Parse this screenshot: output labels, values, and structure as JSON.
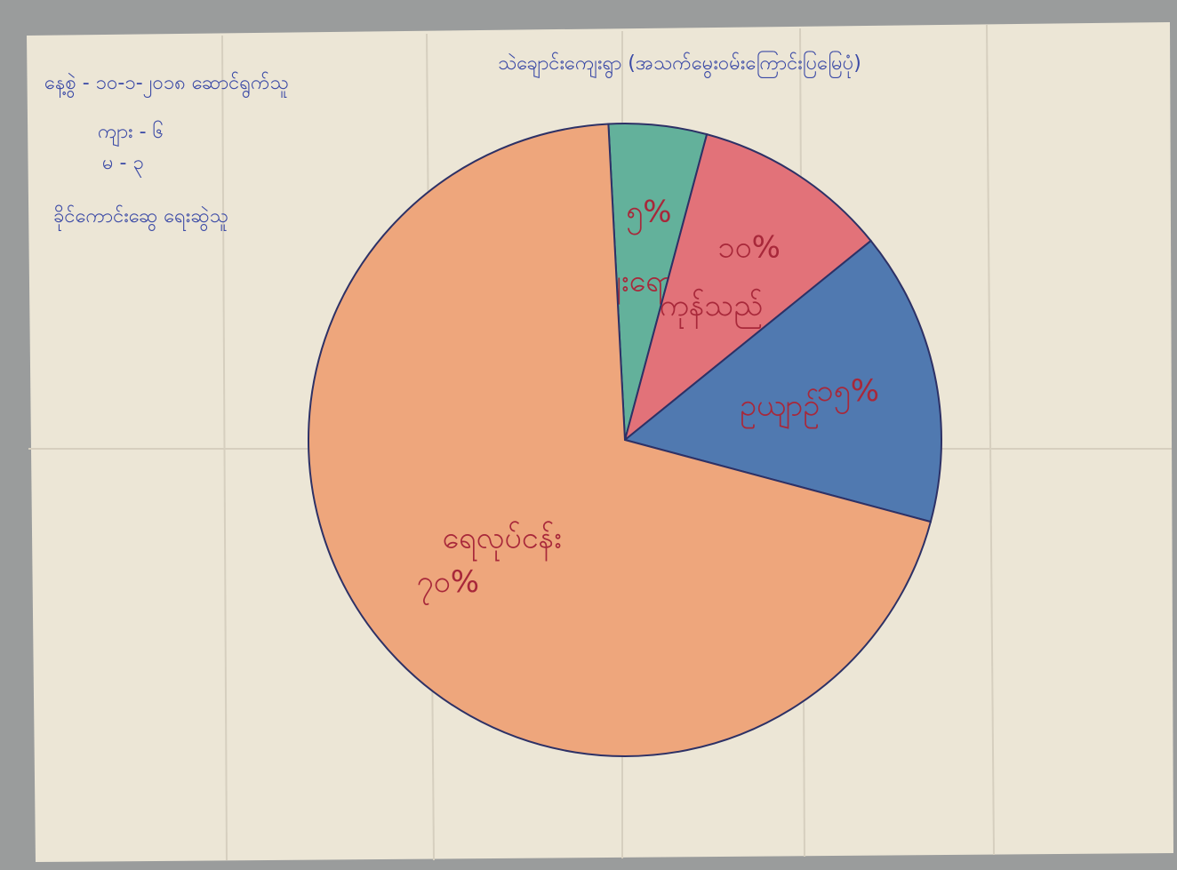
{
  "chart_data": {
    "type": "pie",
    "title": "သဲချောင်းကျေးရွာ (အသက်မွေးဝမ်းကြောင်းပြမြေပုံ)",
    "annotations": [
      "နေ့စွဲ - ၁၀-၁-၂၀၁၈ ဆောင်ရွက်သူ",
      "ကျား - ၆",
      "မ - ၃",
      "ခိုင်ကောင်းဆွေ ရေးဆွဲသူ"
    ],
    "categories": [
      "စျေးရောင်း",
      "ကုန်သည်",
      "ဥယျာဉ်",
      "ရေလုပ်ငန်း"
    ],
    "values": [
      5,
      10,
      15,
      70
    ],
    "value_labels": [
      "၅%",
      "၁၀%",
      "၁၅%",
      "၇၀%"
    ],
    "colors": [
      "#63b19b",
      "#e27279",
      "#5079b0",
      "#eea67c"
    ]
  }
}
